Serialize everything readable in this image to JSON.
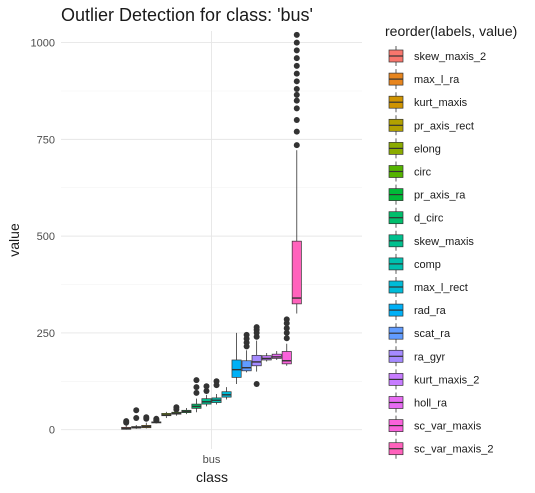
{
  "chart_data": {
    "type": "boxplot",
    "title": "Outlier Detection for class: 'bus'",
    "xlabel": "class",
    "ylabel": "value",
    "categories": [
      "bus"
    ],
    "ylim": [
      -50,
      1030
    ],
    "y_ticks": [
      0,
      250,
      500,
      750,
      1000
    ],
    "grid": true,
    "legend": {
      "title": "reorder(labels, value)",
      "position": "right"
    },
    "series": [
      {
        "name": "skew_maxis_2",
        "color": "#F8766D",
        "box": {
          "min": 0,
          "q1": 1,
          "median": 3,
          "q3": 6,
          "max": 12
        },
        "outliers": [
          18,
          22
        ]
      },
      {
        "name": "max_l_ra",
        "color": "#E7851E",
        "box": {
          "min": 2,
          "q1": 4,
          "median": 6,
          "q3": 8,
          "max": 12
        },
        "outliers": [
          30,
          50
        ]
      },
      {
        "name": "kurt_maxis",
        "color": "#D09400",
        "box": {
          "min": 3,
          "q1": 5,
          "median": 8,
          "q3": 11,
          "max": 18
        },
        "outliers": [
          28,
          32
        ]
      },
      {
        "name": "pr_axis_rect",
        "color": "#B2A100",
        "box": {
          "min": 17,
          "q1": 18,
          "median": 19,
          "q3": 20,
          "max": 22
        },
        "outliers": [
          24,
          25,
          28
        ]
      },
      {
        "name": "elong",
        "color": "#8BAB00",
        "box": {
          "min": 30,
          "q1": 36,
          "median": 38,
          "q3": 42,
          "max": 46
        },
        "outliers": []
      },
      {
        "name": "circ",
        "color": "#55B400",
        "box": {
          "min": 36,
          "q1": 40,
          "median": 42,
          "q3": 45,
          "max": 48
        },
        "outliers": [
          52,
          58
        ]
      },
      {
        "name": "pr_axis_ra",
        "color": "#00BA38",
        "box": {
          "min": 40,
          "q1": 44,
          "median": 47,
          "q3": 50,
          "max": 56
        },
        "outliers": []
      },
      {
        "name": "d_circ",
        "color": "#00BE6C",
        "box": {
          "min": 45,
          "q1": 55,
          "median": 60,
          "q3": 66,
          "max": 80
        },
        "outliers": [
          95,
          110,
          128
        ]
      },
      {
        "name": "skew_maxis",
        "color": "#00C08E",
        "box": {
          "min": 60,
          "q1": 66,
          "median": 72,
          "q3": 80,
          "max": 90
        },
        "outliers": [
          100,
          112
        ]
      },
      {
        "name": "comp",
        "color": "#00C0AF",
        "box": {
          "min": 65,
          "q1": 70,
          "median": 76,
          "q3": 82,
          "max": 92
        },
        "outliers": [
          115,
          125
        ]
      },
      {
        "name": "max_l_rect",
        "color": "#00BCD8",
        "box": {
          "min": 78,
          "q1": 84,
          "median": 90,
          "q3": 98,
          "max": 110
        },
        "outliers": []
      },
      {
        "name": "rad_ra",
        "color": "#00B0F6",
        "box": {
          "min": 118,
          "q1": 135,
          "median": 155,
          "q3": 180,
          "max": 250
        },
        "outliers": []
      },
      {
        "name": "scat_ra",
        "color": "#619CFF",
        "box": {
          "min": 148,
          "q1": 152,
          "median": 160,
          "q3": 178,
          "max": 205
        },
        "outliers": [
          215,
          225,
          235,
          245
        ]
      },
      {
        "name": "ra_gyr",
        "color": "#A58AFF",
        "box": {
          "min": 150,
          "q1": 165,
          "median": 175,
          "q3": 192,
          "max": 230
        },
        "outliers": [
          118,
          240,
          250,
          258,
          265
        ]
      },
      {
        "name": "kurt_maxis_2",
        "color": "#C77CFF",
        "box": {
          "min": 176,
          "q1": 180,
          "median": 184,
          "q3": 191,
          "max": 198
        },
        "outliers": []
      },
      {
        "name": "holl_ra",
        "color": "#E76BF3",
        "box": {
          "min": 180,
          "q1": 184,
          "median": 188,
          "q3": 195,
          "max": 203
        },
        "outliers": []
      },
      {
        "name": "sc_var_maxis",
        "color": "#FA62DB",
        "box": {
          "min": 165,
          "q1": 170,
          "median": 178,
          "q3": 202,
          "max": 222
        },
        "outliers": [
          236,
          250,
          262,
          275,
          285
        ]
      },
      {
        "name": "sc_var_maxis_2",
        "color": "#FF62BC",
        "box": {
          "min": 300,
          "q1": 325,
          "median": 340,
          "q3": 487,
          "max": 722
        },
        "outliers": [
          735,
          770,
          800,
          830,
          850,
          865,
          880,
          900,
          920,
          940,
          960,
          980,
          1000,
          1020
        ]
      }
    ]
  }
}
